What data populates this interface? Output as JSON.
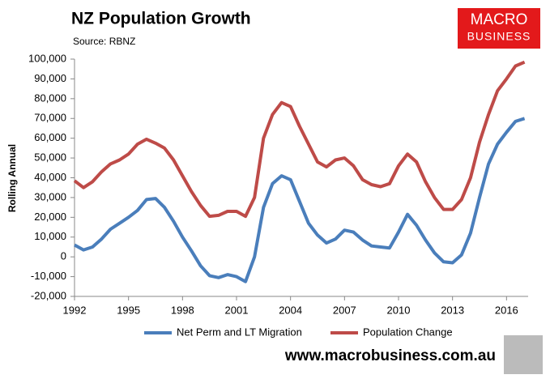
{
  "chart_data": {
    "type": "line",
    "title": "NZ Population Growth",
    "subtitle": "Source: RBNZ",
    "y_label": "Rolling Annual",
    "footer": "www.macrobusiness.com.au",
    "logo": [
      "MACRO",
      "BUSINESS"
    ],
    "x": [
      1992,
      1992.5,
      1993,
      1993.5,
      1994,
      1994.5,
      1995,
      1995.5,
      1996,
      1996.5,
      1997,
      1997.5,
      1998,
      1998.5,
      1999,
      1999.5,
      2000,
      2000.5,
      2001,
      2001.5,
      2002,
      2002.5,
      2003,
      2003.5,
      2004,
      2004.5,
      2005,
      2005.5,
      2006,
      2006.5,
      2007,
      2007.5,
      2008,
      2008.5,
      2009,
      2009.5,
      2010,
      2010.5,
      2011,
      2011.5,
      2012,
      2012.5,
      2013,
      2013.5,
      2014,
      2014.5,
      2015,
      2015.5,
      2016,
      2016.5,
      2017
    ],
    "series": [
      {
        "name": "Net Perm and LT Migration",
        "color": "#4a7ebb",
        "values": [
          6000,
          3500,
          5000,
          9000,
          14000,
          17000,
          20000,
          23500,
          29000,
          29500,
          25000,
          18000,
          10000,
          3000,
          -4500,
          -9500,
          -10500,
          -9000,
          -10000,
          -12500,
          0,
          25000,
          37000,
          41000,
          39000,
          28000,
          17000,
          11000,
          7000,
          9000,
          13500,
          12500,
          8500,
          5500,
          5000,
          4500,
          12500,
          21500,
          16000,
          8500,
          2000,
          -2500,
          -3000,
          1000,
          12000,
          30000,
          47000,
          57000,
          63000,
          68500,
          70000
        ]
      },
      {
        "name": "Population Change",
        "color": "#be4b48",
        "values": [
          38500,
          35000,
          38000,
          43000,
          47000,
          49000,
          52000,
          57000,
          59500,
          57500,
          55000,
          49000,
          41000,
          33000,
          26000,
          20500,
          21000,
          23000,
          23000,
          20500,
          30000,
          60000,
          72000,
          78000,
          76000,
          66000,
          57000,
          48000,
          45500,
          49000,
          50000,
          46000,
          39000,
          36500,
          35500,
          37000,
          46000,
          52000,
          48000,
          38000,
          30000,
          24000,
          24000,
          29000,
          40000,
          58000,
          72000,
          84000,
          90000,
          96500,
          98500
        ]
      }
    ],
    "xlim": [
      1992,
      2017.2
    ],
    "xticks": [
      1992,
      1995,
      1998,
      2001,
      2004,
      2007,
      2010,
      2013,
      2016
    ],
    "ylim": [
      -20000,
      100000
    ],
    "yticks": [
      {
        "value": -20000,
        "label": "-20,000"
      },
      {
        "value": -10000,
        "label": "-10,000"
      },
      0,
      {
        "value": 10000,
        "label": "10,000"
      },
      {
        "value": 20000,
        "label": "20,000"
      },
      {
        "value": 30000,
        "label": "30,000"
      },
      {
        "value": 40000,
        "label": "40,000"
      },
      {
        "value": 50000,
        "label": "50,000"
      },
      {
        "value": 60000,
        "label": "60,000"
      },
      {
        "value": 70000,
        "label": "70,000"
      },
      {
        "value": 80000,
        "label": "80,000"
      },
      {
        "value": 90000,
        "label": "90,000"
      },
      {
        "value": 100000,
        "label": "100,000"
      }
    ],
    "legend": "bottom"
  }
}
